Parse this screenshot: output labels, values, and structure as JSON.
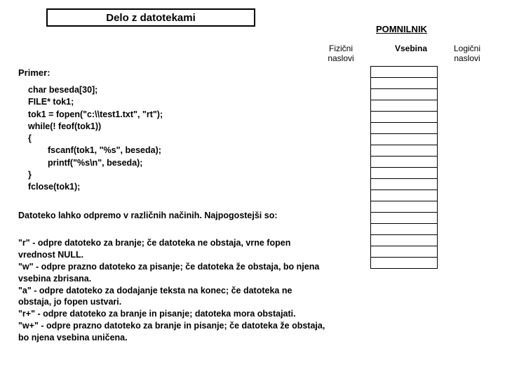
{
  "title": "Delo z datotekami",
  "memory": {
    "heading": "POMNILNIK",
    "col_fizicni_line1": "Fizični",
    "col_fizicni_line2": "naslovi",
    "col_vsebina": "Vsebina",
    "col_logicni_line1": "Logični",
    "col_logicni_line2": "naslovi",
    "rows": 18
  },
  "primer_label": "Primer:",
  "code": {
    "l1": "char beseda[30];",
    "l2": "FILE* tok1;",
    "l3": "tok1 = fopen(\"c:\\\\test1.txt\", \"rt\");",
    "l4": "while(! feof(tok1))",
    "l5": "{",
    "l6": "fscanf(tok1, \"%s\", beseda);",
    "l7": "printf(\"%s\\n\", beseda);",
    "l8": "}",
    "l9": "fclose(tok1);"
  },
  "para1": "Datoteko lahko odpremo v različnih načinih. Najpogostejši so:",
  "modes": {
    "r": "\"r\"  - odpre datoteko za branje; če datoteka ne obstaja, vrne fopen vrednost NULL.",
    "w": "\"w\" - odpre prazno datoteko za pisanje; če datoteka že obstaja, bo njena vsebina zbrisana.",
    "a": "\"a\"  - odpre datoteko za dodajanje teksta na konec; če datoteka ne obstaja, jo fopen ustvari.",
    "rp": "\"r+\" - odpre datoteko za branje in pisanje; datoteka mora obstajati.",
    "wp": "\"w+\" - odpre prazno datoteko za branje in pisanje; če datoteka že obstaja, bo njena vsebina uničena."
  },
  "colors": {
    "background": "#ffffff",
    "border": "#000000",
    "text": "#000000"
  }
}
